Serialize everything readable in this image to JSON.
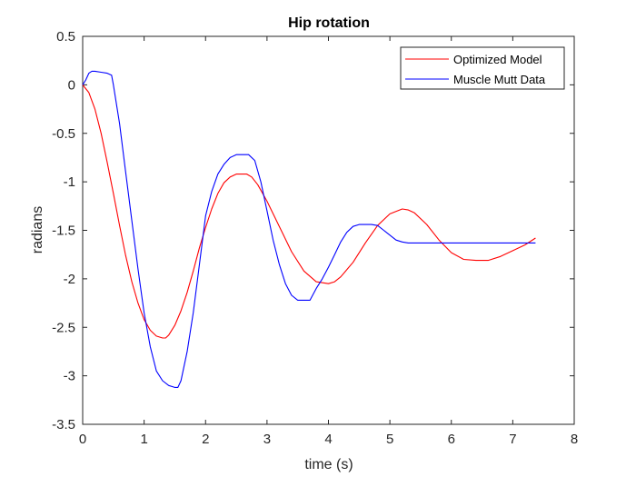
{
  "chart_data": {
    "type": "line",
    "title": "Hip rotation",
    "xlabel": "time (s)",
    "ylabel": "radians",
    "xlim": [
      0,
      8
    ],
    "ylim": [
      -3.5,
      0.5
    ],
    "xticks": [
      0,
      1,
      2,
      3,
      4,
      5,
      6,
      7,
      8
    ],
    "xtick_labels": [
      "0",
      "1",
      "2",
      "3",
      "4",
      "5",
      "6",
      "7",
      "8"
    ],
    "yticks": [
      0.5,
      0,
      -0.5,
      -1,
      -1.5,
      -2,
      -2.5,
      -3,
      -3.5
    ],
    "ytick_labels": [
      "0.5",
      "0",
      "-0.5",
      "-1",
      "-1.5",
      "-2",
      "-2.5",
      "-3",
      "-3.5"
    ],
    "grid": false,
    "legend_position": "top-right",
    "series": [
      {
        "name": "Optimized Model",
        "color": "#ff0000",
        "x": [
          0,
          0.1,
          0.2,
          0.3,
          0.4,
          0.5,
          0.6,
          0.7,
          0.8,
          0.9,
          1.0,
          1.1,
          1.2,
          1.3,
          1.35,
          1.4,
          1.5,
          1.6,
          1.7,
          1.8,
          1.9,
          2.0,
          2.1,
          2.2,
          2.3,
          2.4,
          2.5,
          2.6,
          2.67,
          2.75,
          2.85,
          3.0,
          3.2,
          3.4,
          3.6,
          3.8,
          4.0,
          4.1,
          4.2,
          4.4,
          4.6,
          4.8,
          5.0,
          5.2,
          5.3,
          5.4,
          5.6,
          5.8,
          6.0,
          6.2,
          6.4,
          6.6,
          6.8,
          7.0,
          7.2,
          7.37
        ],
        "values": [
          0,
          -0.08,
          -0.25,
          -0.5,
          -0.8,
          -1.12,
          -1.45,
          -1.76,
          -2.03,
          -2.25,
          -2.42,
          -2.53,
          -2.59,
          -2.61,
          -2.61,
          -2.58,
          -2.48,
          -2.33,
          -2.14,
          -1.92,
          -1.68,
          -1.47,
          -1.28,
          -1.12,
          -1.01,
          -0.95,
          -0.92,
          -0.92,
          -0.92,
          -0.95,
          -1.03,
          -1.2,
          -1.46,
          -1.72,
          -1.92,
          -2.03,
          -2.05,
          -2.03,
          -1.98,
          -1.83,
          -1.63,
          -1.45,
          -1.33,
          -1.28,
          -1.29,
          -1.32,
          -1.44,
          -1.6,
          -1.73,
          -1.8,
          -1.81,
          -1.81,
          -1.77,
          -1.71,
          -1.65,
          -1.58
        ]
      },
      {
        "name": "Muscle Mutt Data",
        "color": "#0000ff",
        "x": [
          0,
          0.05,
          0.1,
          0.15,
          0.2,
          0.3,
          0.4,
          0.47,
          0.5,
          0.6,
          0.7,
          0.8,
          0.9,
          1.0,
          1.1,
          1.2,
          1.3,
          1.4,
          1.5,
          1.55,
          1.6,
          1.7,
          1.8,
          1.9,
          2.0,
          2.1,
          2.2,
          2.3,
          2.4,
          2.5,
          2.6,
          2.7,
          2.8,
          2.9,
          3.0,
          3.1,
          3.2,
          3.3,
          3.4,
          3.5,
          3.6,
          3.7,
          3.8,
          3.9,
          4.0,
          4.1,
          4.2,
          4.3,
          4.4,
          4.5,
          4.6,
          4.7,
          4.8,
          4.9,
          5.0,
          5.1,
          5.2,
          5.3,
          5.4,
          5.5,
          5.6,
          5.8,
          6.0,
          6.5,
          7.0,
          7.37
        ],
        "values": [
          0,
          0.05,
          0.12,
          0.14,
          0.14,
          0.13,
          0.12,
          0.1,
          0.0,
          -0.4,
          -0.9,
          -1.4,
          -1.9,
          -2.35,
          -2.7,
          -2.95,
          -3.05,
          -3.1,
          -3.12,
          -3.12,
          -3.05,
          -2.75,
          -2.35,
          -1.85,
          -1.35,
          -1.1,
          -0.92,
          -0.82,
          -0.75,
          -0.72,
          -0.72,
          -0.72,
          -0.78,
          -1.0,
          -1.3,
          -1.6,
          -1.85,
          -2.05,
          -2.17,
          -2.22,
          -2.22,
          -2.22,
          -2.1,
          -2.0,
          -1.88,
          -1.75,
          -1.62,
          -1.52,
          -1.46,
          -1.44,
          -1.44,
          -1.44,
          -1.45,
          -1.5,
          -1.55,
          -1.6,
          -1.62,
          -1.63,
          -1.63,
          -1.63,
          -1.63,
          -1.63,
          -1.63,
          -1.63,
          -1.63,
          -1.63
        ]
      }
    ]
  }
}
